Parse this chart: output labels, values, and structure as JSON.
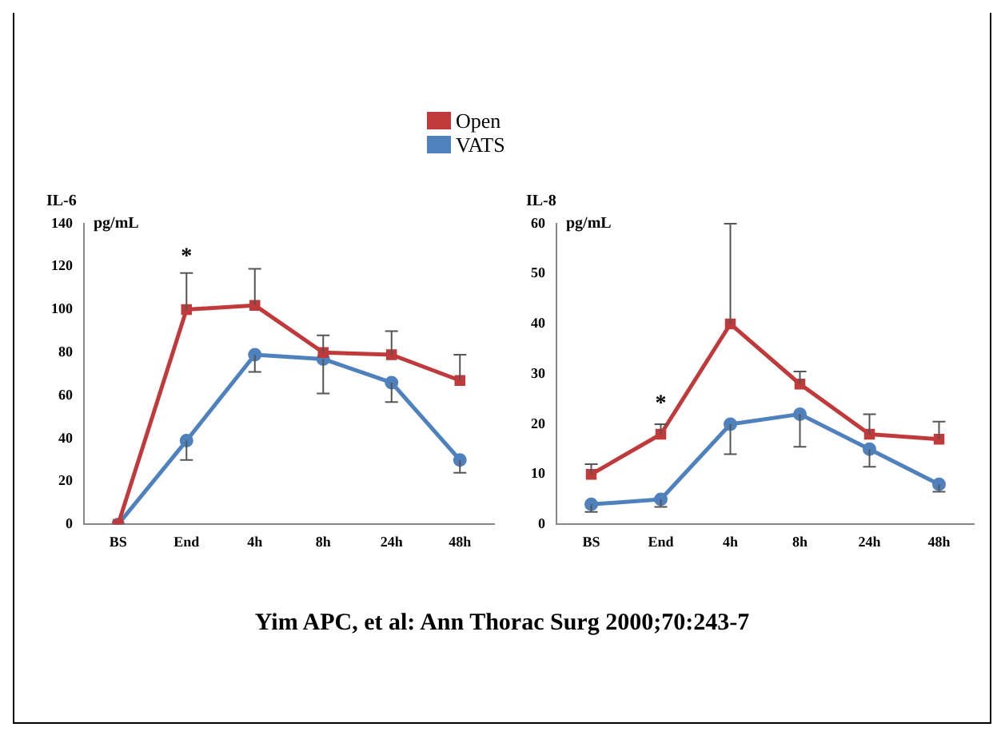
{
  "chart_data": [
    {
      "type": "line",
      "title": "IL-6",
      "ylabel": "pg/mL",
      "categories": [
        "BS",
        "End",
        "4h",
        "8h",
        "24h",
        "48h"
      ],
      "ylim": [
        0,
        140
      ],
      "yticks": [
        0,
        20,
        40,
        60,
        80,
        100,
        120,
        140
      ],
      "grid": false,
      "legend": "top",
      "series": [
        {
          "name": "Open",
          "color": "#c0393b",
          "marker": "square",
          "values": [
            0,
            100,
            102,
            80,
            79,
            67
          ],
          "errors": [
            null,
            [
              100,
              117
            ],
            [
              102,
              119
            ],
            [
              80,
              88
            ],
            [
              79,
              90
            ],
            [
              67,
              79
            ]
          ]
        },
        {
          "name": "VATS",
          "color": "#4f81bd",
          "marker": "circle",
          "values": [
            0,
            39,
            79,
            77,
            66,
            30
          ],
          "errors": [
            null,
            [
              30,
              39
            ],
            [
              71,
              79
            ],
            [
              61,
              77
            ],
            [
              57,
              66
            ],
            [
              24,
              30
            ]
          ]
        }
      ],
      "annotations": [
        "*"
      ]
    },
    {
      "type": "line",
      "title": "IL-8",
      "ylabel": "pg/mL",
      "categories": [
        "BS",
        "End",
        "4h",
        "8h",
        "24h",
        "48h"
      ],
      "ylim": [
        0,
        60
      ],
      "yticks": [
        0,
        10,
        20,
        30,
        40,
        50,
        60
      ],
      "grid": false,
      "series": [
        {
          "color": "#c0393b",
          "marker": "square",
          "values": [
            10,
            18,
            40,
            28,
            18,
            17
          ],
          "errors": [
            [
              10,
              12
            ],
            [
              18,
              20
            ],
            [
              40,
              60
            ],
            [
              28,
              30.5
            ],
            [
              18,
              22
            ],
            [
              17,
              20.5
            ]
          ]
        },
        {
          "color": "#4f81bd",
          "marker": "circle",
          "values": [
            4,
            5,
            20,
            22,
            15,
            8
          ],
          "errors": [
            [
              2.5,
              4
            ],
            [
              3.5,
              5
            ],
            [
              14,
              20
            ],
            [
              15.5,
              22
            ],
            [
              11.5,
              15
            ],
            [
              6.5,
              8
            ]
          ]
        }
      ],
      "annotations": [
        "*",
        "Yim APC, et al: Ann Thorac Surg 2000;70:243-7"
      ]
    }
  ]
}
